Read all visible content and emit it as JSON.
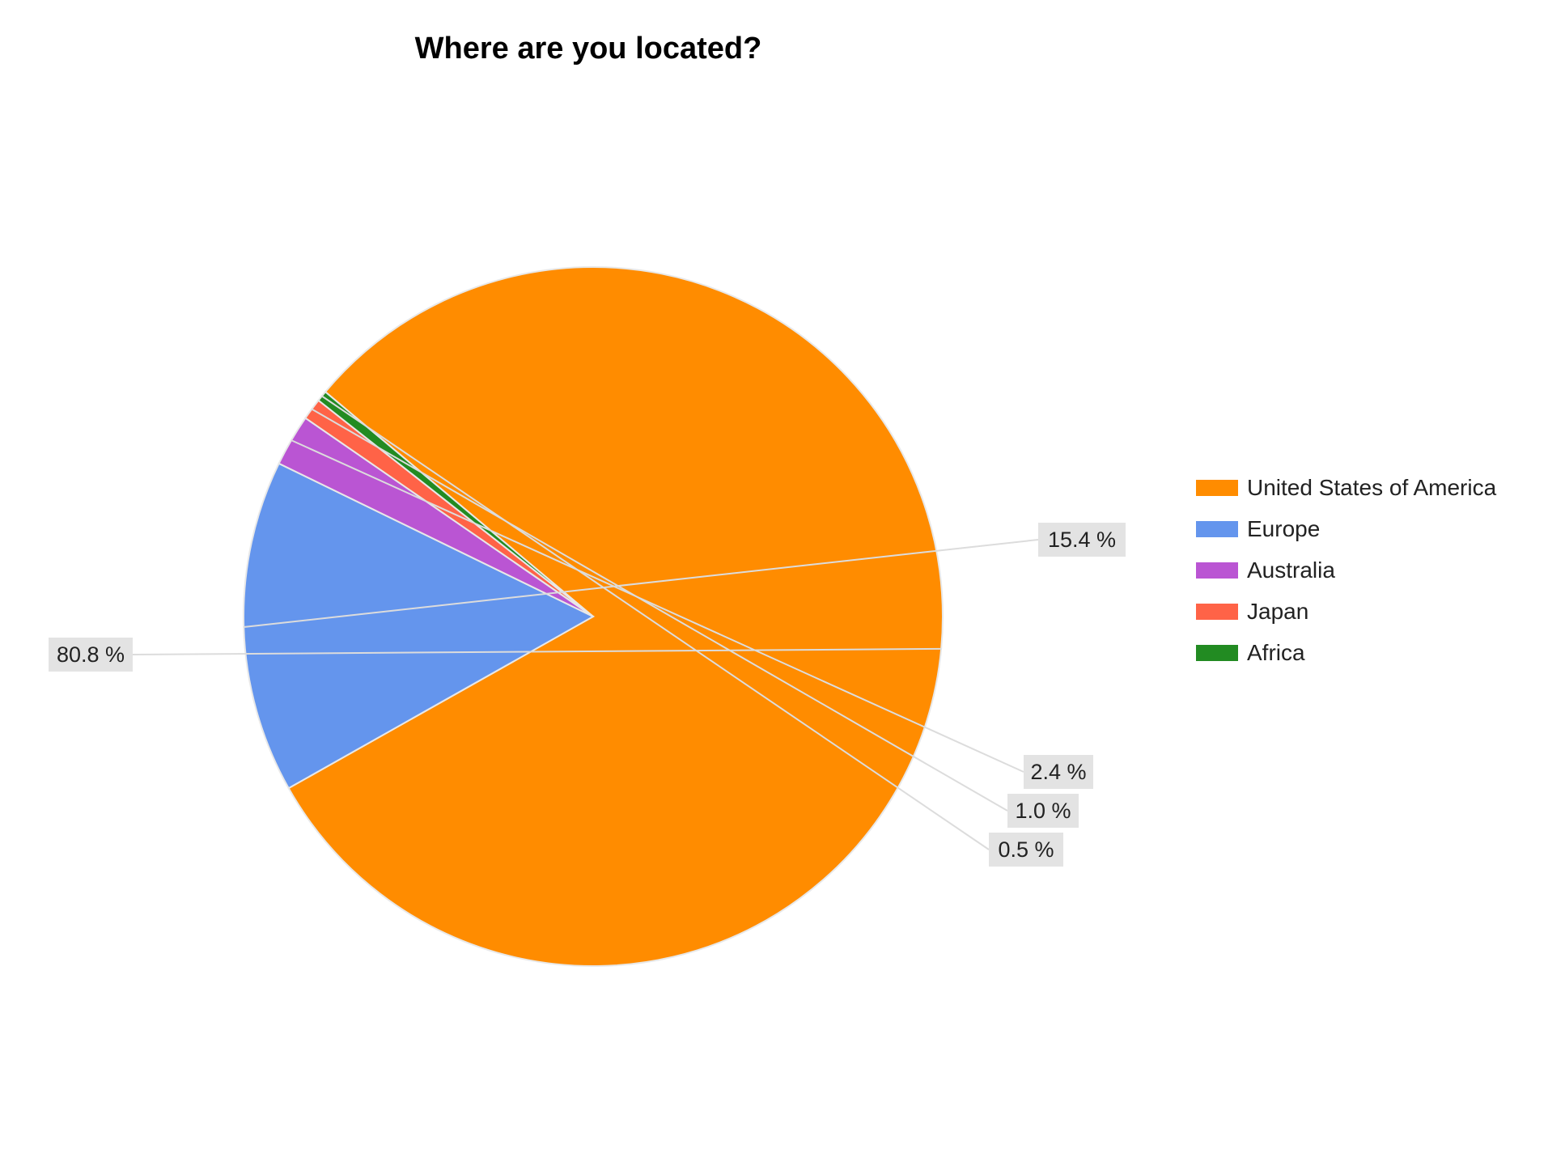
{
  "chart_data": {
    "type": "pie",
    "title": "Where are you located?",
    "legend": "right",
    "slices": [
      {
        "name": "United States of America",
        "value": 80.8,
        "label": "80.8 %",
        "color": "#ff8c00"
      },
      {
        "name": "Europe",
        "value": 15.4,
        "label": "15.4 %",
        "color": "#6495ed"
      },
      {
        "name": "Australia",
        "value": 2.4,
        "label": "2.4 %",
        "color": "#ba55d3"
      },
      {
        "name": "Japan",
        "value": 1.0,
        "label": "1.0 %",
        "color": "#ff6347"
      },
      {
        "name": "Africa",
        "value": 0.5,
        "label": "0.5 %",
        "color": "#228b22"
      }
    ]
  }
}
